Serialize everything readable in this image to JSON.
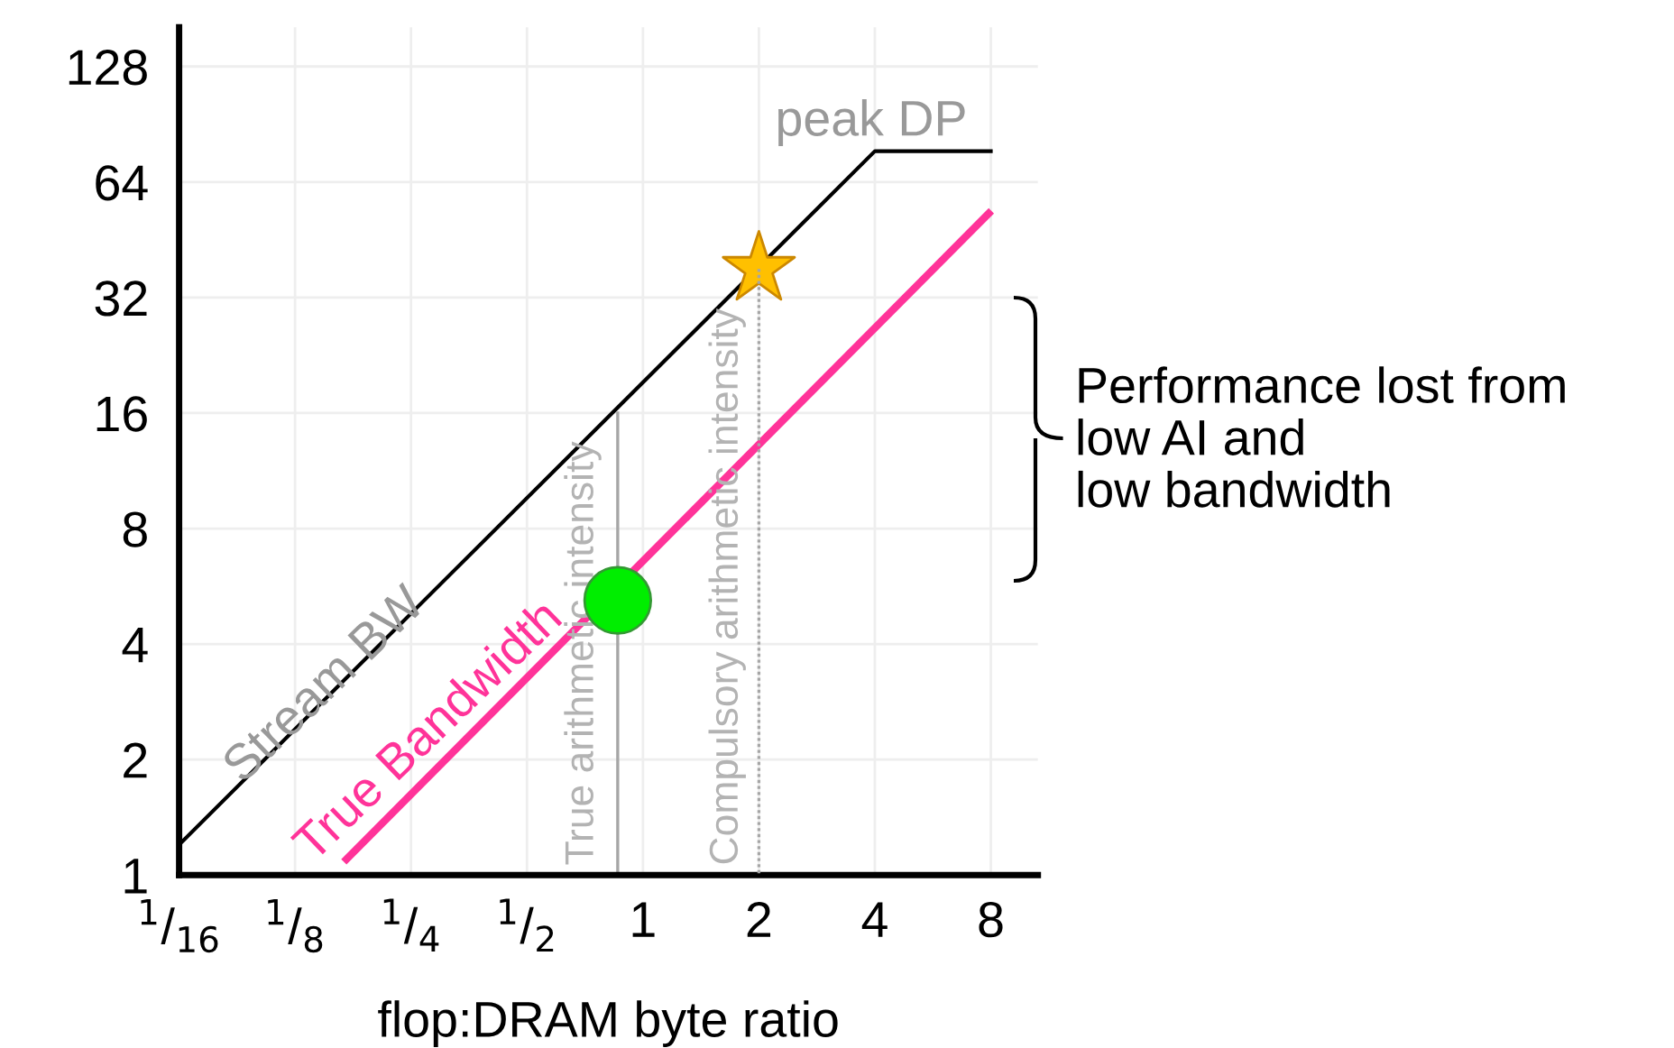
{
  "chart_data": {
    "type": "line",
    "log": "xy",
    "xlabel": "flop:DRAM byte ratio",
    "xlim": [
      0.0625,
      10.6
    ],
    "ylim": [
      1,
      162
    ],
    "xticks": [
      {
        "value": 0.0625,
        "label": "$^{1}$/$_{16}$"
      },
      {
        "value": 0.125,
        "label": "$^{1}$/$_{8}$"
      },
      {
        "value": 0.25,
        "label": "$^{1}$/$_{4}$"
      },
      {
        "value": 0.5,
        "label": "$^{1}$/$_{2}$"
      },
      1,
      2,
      4,
      8
    ],
    "yticks": [
      1,
      2,
      4,
      8,
      16,
      32,
      64,
      128
    ],
    "grid": true,
    "series": [
      {
        "color": "#000000",
        "x": [
          0.0625,
          4,
          8
        ],
        "values": [
          1.2,
          77,
          77
        ],
        "line_style": "solid",
        "marker": "none"
      },
      {
        "name": "True Bandwidth",
        "color": "#ff3399",
        "x": [
          0.17,
          7.9
        ],
        "values": [
          1.1,
          53
        ],
        "line_style": "solid",
        "marker": "none"
      },
      {
        "color": "#a6a6a6",
        "x": [
          0.86,
          0.86
        ],
        "values": [
          1,
          16
        ],
        "line_style": "solid",
        "marker": "none"
      },
      {
        "color": "#a6a6a6",
        "x": [
          2,
          2
        ],
        "values": [
          1,
          38
        ],
        "line_style": "dotted",
        "marker": "none"
      },
      {
        "type": "scatter",
        "color": "#ffc000",
        "x": [
          2
        ],
        "values": [
          38
        ],
        "marker": "star"
      },
      {
        "type": "scatter",
        "color": "#00ee00",
        "x": [
          0.86
        ],
        "values": [
          5.2
        ],
        "marker": "circle"
      }
    ],
    "annotations": [
      {
        "text": "Stream BW",
        "x": 0.15,
        "y": 3.1
      },
      "peak DP",
      "True arithmetic intensity",
      "Compulsory arithmetic intensity",
      "Performance lost from\nlow AI and\nlow bandwidth"
    ]
  }
}
